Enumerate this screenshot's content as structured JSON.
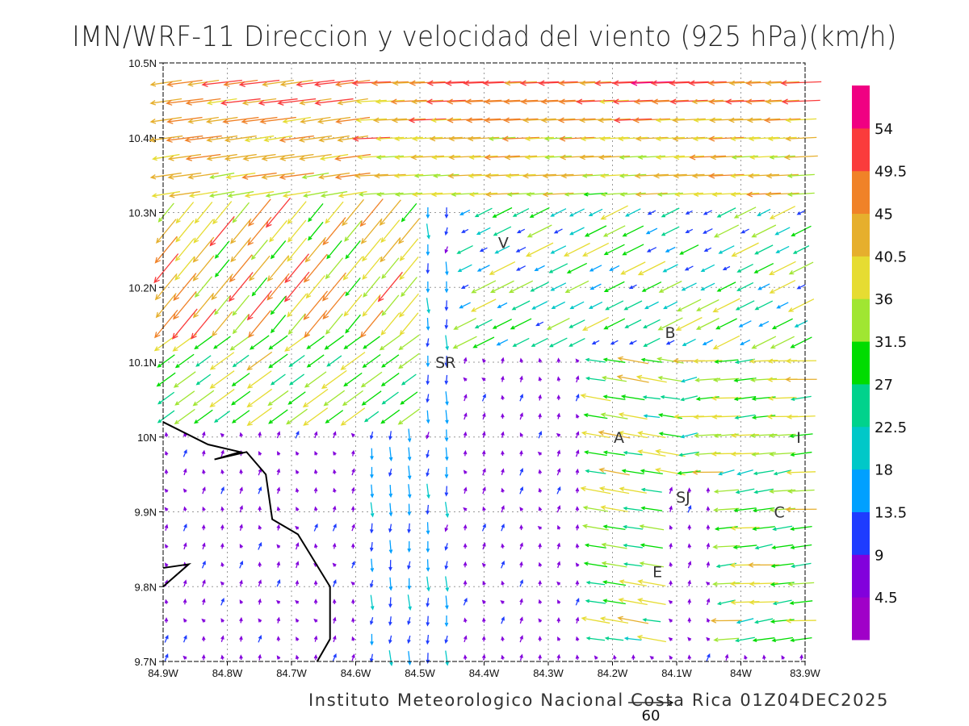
{
  "title": "IMN/WRF-11 Direccion y velocidad del viento (925 hPa)(km/h)",
  "footer": "Instituto Meteorologico Nacional Costa Rica 01Z04DEC2025",
  "reference_vector": {
    "value": 60,
    "label": "60"
  },
  "chart_data": {
    "type": "vector-field",
    "variable": "wind direction and speed",
    "level": "925 hPa",
    "units": "km/h",
    "lon_range": [
      -84.9,
      -83.9
    ],
    "lat_range": [
      9.7,
      10.5
    ],
    "x_ticks": [
      "84.9W",
      "84.8W",
      "84.7W",
      "84.6W",
      "84.5W",
      "84.4W",
      "84.3W",
      "84.2W",
      "84.1W",
      "84W",
      "83.9W"
    ],
    "y_ticks": [
      "9.7N",
      "9.8N",
      "9.9N",
      "10N",
      "10.1N",
      "10.2N",
      "10.3N",
      "10.4N",
      "10.5N"
    ],
    "grid": true,
    "colorbar": {
      "labels": [
        "4.5",
        "9",
        "13.5",
        "18",
        "22.5",
        "27",
        "31.5",
        "36",
        "40.5",
        "45",
        "49.5",
        "54"
      ],
      "thresholds": [
        4.5,
        9,
        13.5,
        18,
        22.5,
        27,
        31.5,
        36,
        40.5,
        45,
        49.5,
        54
      ],
      "colors": [
        "#a000c8",
        "#8200dc",
        "#1e3cff",
        "#00a0ff",
        "#00c8c8",
        "#00d28c",
        "#00dc00",
        "#a0e632",
        "#e6dc32",
        "#e6af2d",
        "#f08228",
        "#fa3c3c",
        "#f00082"
      ]
    },
    "places": [
      {
        "label": "V",
        "lon": -84.37,
        "lat": 10.26
      },
      {
        "label": "B",
        "lon": -84.11,
        "lat": 10.14
      },
      {
        "label": "SR",
        "lon": -84.46,
        "lat": 10.1
      },
      {
        "label": "A",
        "lon": -84.19,
        "lat": 10.0
      },
      {
        "label": "I",
        "lon": -83.91,
        "lat": 10.0
      },
      {
        "label": "SJ",
        "lon": -84.09,
        "lat": 9.92
      },
      {
        "label": "C",
        "lon": -83.94,
        "lat": 9.9
      },
      {
        "label": "E",
        "lon": -84.13,
        "lat": 9.82
      }
    ],
    "coastline": [
      [
        -84.9,
        10.02
      ],
      [
        -84.83,
        9.99
      ],
      [
        -84.78,
        9.98
      ],
      [
        -84.82,
        9.97
      ],
      [
        -84.77,
        9.98
      ],
      [
        -84.74,
        9.95
      ],
      [
        -84.73,
        9.89
      ],
      [
        -84.69,
        9.87
      ],
      [
        -84.64,
        9.8
      ],
      [
        -84.64,
        9.73
      ],
      [
        -84.66,
        9.7
      ]
    ],
    "coastline2": [
      [
        -84.9,
        9.825
      ],
      [
        -84.86,
        9.83
      ],
      [
        -84.9,
        9.8
      ]
    ]
  }
}
